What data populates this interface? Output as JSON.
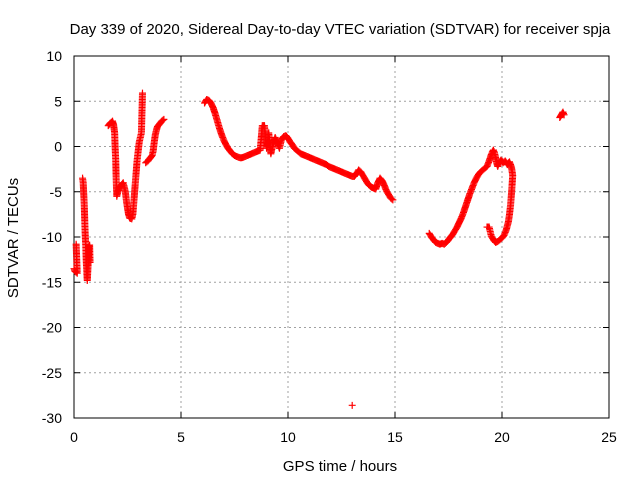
{
  "chart_data": {
    "type": "scatter",
    "title": "Day 339 of 2020, Sidereal Day-to-day VTEC variation (SDTVAR) for receiver spja",
    "xlabel": "GPS time / hours",
    "ylabel": "SDTVAR / TECUs",
    "xlim": [
      0,
      25
    ],
    "ylim": [
      -30,
      10
    ],
    "xticks": [
      0,
      5,
      10,
      15,
      20,
      25
    ],
    "yticks": [
      -30,
      -25,
      -20,
      -15,
      -10,
      -5,
      0,
      5,
      10
    ],
    "grid": true,
    "marker": "plus",
    "color": "#ff0000",
    "series": [
      {
        "name": "SDTVAR",
        "segments": [
          [
            [
              0.0,
              -13.5
            ],
            [
              0.05,
              -13.8
            ],
            [
              0.1,
              -13.9
            ],
            [
              0.15,
              -14.0
            ],
            [
              0.1,
              -10.8
            ]
          ],
          [
            [
              0.4,
              -3.5
            ],
            [
              0.43,
              -4.0
            ],
            [
              0.45,
              -5.0
            ],
            [
              0.48,
              -6.5
            ],
            [
              0.5,
              -8.0
            ],
            [
              0.52,
              -9.5
            ],
            [
              0.55,
              -11.0
            ],
            [
              0.57,
              -12.5
            ],
            [
              0.6,
              -14.0
            ],
            [
              0.62,
              -14.8
            ],
            [
              0.65,
              -13.5
            ],
            [
              0.68,
              -12.0
            ],
            [
              0.7,
              -11.0
            ],
            [
              0.73,
              -10.9
            ],
            [
              0.75,
              -12.8
            ]
          ],
          [
            [
              1.6,
              2.3
            ],
            [
              1.7,
              2.6
            ],
            [
              1.8,
              2.8
            ],
            [
              1.85,
              2.4
            ],
            [
              1.9,
              1.5
            ],
            [
              1.92,
              0.0
            ],
            [
              1.95,
              -1.5
            ],
            [
              1.97,
              -3.5
            ],
            [
              2.0,
              -5.5
            ],
            [
              2.05,
              -5.0
            ],
            [
              2.1,
              -4.6
            ],
            [
              2.2,
              -4.3
            ],
            [
              2.3,
              -4.0
            ],
            [
              2.35,
              -4.5
            ],
            [
              2.4,
              -5.0
            ],
            [
              2.45,
              -6.0
            ],
            [
              2.5,
              -6.8
            ],
            [
              2.55,
              -7.5
            ],
            [
              2.6,
              -7.9
            ],
            [
              2.7,
              -8.0
            ],
            [
              2.75,
              -7.5
            ],
            [
              2.8,
              -6.0
            ],
            [
              2.85,
              -4.5
            ],
            [
              2.9,
              -3.0
            ],
            [
              2.95,
              -1.5
            ],
            [
              3.0,
              -0.5
            ],
            [
              3.05,
              0.5
            ],
            [
              3.1,
              1.0
            ],
            [
              3.15,
              1.5
            ],
            [
              3.2,
              5.9
            ]
          ],
          [
            [
              3.35,
              -1.8
            ],
            [
              3.45,
              -1.6
            ],
            [
              3.55,
              -1.3
            ],
            [
              3.65,
              -1.0
            ],
            [
              3.7,
              -0.5
            ],
            [
              3.75,
              0.5
            ],
            [
              3.8,
              1.3
            ],
            [
              3.85,
              1.8
            ],
            [
              3.9,
              2.2
            ],
            [
              4.0,
              2.5
            ],
            [
              4.1,
              2.8
            ],
            [
              4.2,
              3.0
            ]
          ],
          [
            [
              6.1,
              4.8
            ],
            [
              6.2,
              5.2
            ],
            [
              6.3,
              5.1
            ],
            [
              6.4,
              4.8
            ],
            [
              6.5,
              4.3
            ],
            [
              6.6,
              3.6
            ],
            [
              6.7,
              2.8
            ],
            [
              6.8,
              2.0
            ],
            [
              6.9,
              1.3
            ],
            [
              7.0,
              0.7
            ],
            [
              7.1,
              0.2
            ],
            [
              7.2,
              -0.2
            ],
            [
              7.3,
              -0.5
            ],
            [
              7.4,
              -0.8
            ],
            [
              7.5,
              -1.0
            ],
            [
              7.6,
              -1.1
            ],
            [
              7.7,
              -1.2
            ],
            [
              7.8,
              -1.25
            ],
            [
              7.9,
              -1.2
            ],
            [
              8.0,
              -1.1
            ],
            [
              8.1,
              -1.0
            ],
            [
              8.2,
              -0.9
            ],
            [
              8.3,
              -0.8
            ],
            [
              8.4,
              -0.7
            ],
            [
              8.5,
              -0.6
            ],
            [
              8.6,
              -0.5
            ],
            [
              8.7,
              -0.4
            ],
            [
              8.8,
              2.3
            ],
            [
              8.9,
              2.3
            ],
            [
              9.0,
              -0.2
            ],
            [
              9.05,
              0.5
            ],
            [
              9.1,
              1.5
            ],
            [
              9.15,
              0.3
            ],
            [
              9.2,
              -0.8
            ],
            [
              9.3,
              0.3
            ],
            [
              9.4,
              1.0
            ],
            [
              9.5,
              0.4
            ],
            [
              9.6,
              -0.2
            ],
            [
              9.7,
              0.8
            ],
            [
              9.8,
              1.1
            ],
            [
              9.9,
              1.2
            ],
            [
              10.0,
              0.9
            ],
            [
              10.1,
              0.5
            ],
            [
              10.2,
              0.2
            ],
            [
              10.3,
              -0.2
            ],
            [
              10.4,
              -0.4
            ],
            [
              10.5,
              -0.6
            ],
            [
              10.6,
              -0.8
            ],
            [
              10.7,
              -0.9
            ],
            [
              10.8,
              -1.0
            ],
            [
              10.9,
              -1.1
            ],
            [
              11.0,
              -1.2
            ],
            [
              11.1,
              -1.3
            ],
            [
              11.2,
              -1.4
            ],
            [
              11.3,
              -1.5
            ],
            [
              11.4,
              -1.6
            ],
            [
              11.5,
              -1.7
            ],
            [
              11.6,
              -1.8
            ],
            [
              11.7,
              -1.9
            ],
            [
              11.8,
              -2.0
            ],
            [
              11.9,
              -2.2
            ],
            [
              12.0,
              -2.3
            ],
            [
              12.1,
              -2.4
            ],
            [
              12.2,
              -2.5
            ],
            [
              12.3,
              -2.6
            ],
            [
              12.4,
              -2.7
            ],
            [
              12.5,
              -2.8
            ],
            [
              12.6,
              -2.9
            ],
            [
              12.7,
              -3.0
            ],
            [
              12.8,
              -3.1
            ],
            [
              12.9,
              -3.2
            ],
            [
              13.0,
              -3.3
            ],
            [
              13.1,
              -3.3
            ],
            [
              13.2,
              -3.0
            ],
            [
              13.3,
              -2.6
            ],
            [
              13.4,
              -2.8
            ],
            [
              13.5,
              -3.2
            ],
            [
              13.6,
              -3.6
            ],
            [
              13.7,
              -4.0
            ],
            [
              13.8,
              -4.3
            ],
            [
              13.9,
              -4.5
            ],
            [
              14.0,
              -4.6
            ],
            [
              14.1,
              -4.7
            ],
            [
              14.2,
              -4.0
            ],
            [
              14.3,
              -3.5
            ],
            [
              14.4,
              -3.8
            ],
            [
              14.5,
              -4.3
            ],
            [
              14.6,
              -4.9
            ],
            [
              14.7,
              -5.3
            ],
            [
              14.8,
              -5.7
            ],
            [
              14.9,
              -5.9
            ]
          ],
          [
            [
              13.0,
              -28.6
            ]
          ],
          [
            [
              16.6,
              -9.6
            ],
            [
              16.7,
              -10.0
            ],
            [
              16.8,
              -10.3
            ],
            [
              16.9,
              -10.6
            ],
            [
              17.0,
              -10.7
            ],
            [
              17.1,
              -10.8
            ],
            [
              17.2,
              -10.7
            ],
            [
              17.3,
              -10.8
            ],
            [
              17.4,
              -10.6
            ],
            [
              17.5,
              -10.3
            ],
            [
              17.6,
              -10.0
            ],
            [
              17.7,
              -9.7
            ],
            [
              17.8,
              -9.3
            ],
            [
              17.9,
              -8.9
            ],
            [
              18.0,
              -8.4
            ],
            [
              18.1,
              -7.9
            ],
            [
              18.2,
              -7.3
            ],
            [
              18.3,
              -6.6
            ],
            [
              18.4,
              -5.9
            ],
            [
              18.5,
              -5.2
            ],
            [
              18.6,
              -4.6
            ],
            [
              18.7,
              -4.0
            ],
            [
              18.8,
              -3.5
            ],
            [
              18.9,
              -3.1
            ],
            [
              19.0,
              -2.8
            ],
            [
              19.1,
              -2.6
            ],
            [
              19.2,
              -2.4
            ],
            [
              19.3,
              -2.2
            ],
            [
              19.4,
              -1.6
            ],
            [
              19.5,
              -0.9
            ],
            [
              19.55,
              -0.6
            ],
            [
              19.6,
              -0.4
            ],
            [
              19.65,
              -0.7
            ],
            [
              19.7,
              -1.2
            ],
            [
              19.75,
              -1.8
            ],
            [
              19.8,
              -2.2
            ],
            [
              19.85,
              -1.9
            ],
            [
              19.9,
              -1.7
            ],
            [
              19.95,
              -1.5
            ],
            [
              20.0,
              -1.6
            ],
            [
              20.05,
              -1.8
            ],
            [
              20.1,
              -1.7
            ],
            [
              20.15,
              -1.6
            ],
            [
              20.2,
              -1.8
            ],
            [
              20.25,
              -2.0
            ],
            [
              20.3,
              -1.8
            ],
            [
              20.35,
              -1.7
            ],
            [
              20.4,
              -2.0
            ],
            [
              20.45,
              -2.4
            ],
            [
              20.5,
              -3.2
            ],
            [
              20.45,
              -5.0
            ],
            [
              20.4,
              -6.5
            ],
            [
              20.35,
              -7.5
            ],
            [
              20.3,
              -8.3
            ],
            [
              20.2,
              -9.2
            ],
            [
              20.1,
              -9.8
            ],
            [
              20.0,
              -10.1
            ],
            [
              19.9,
              -10.3
            ],
            [
              19.8,
              -10.5
            ],
            [
              19.7,
              -10.6
            ],
            [
              19.6,
              -10.3
            ],
            [
              19.5,
              -9.9
            ],
            [
              19.4,
              -8.9
            ],
            [
              19.3,
              -8.9
            ]
          ],
          [
            [
              22.7,
              3.2
            ],
            [
              22.75,
              3.4
            ],
            [
              22.8,
              3.6
            ],
            [
              22.85,
              3.8
            ],
            [
              22.9,
              3.5
            ]
          ]
        ]
      }
    ]
  }
}
